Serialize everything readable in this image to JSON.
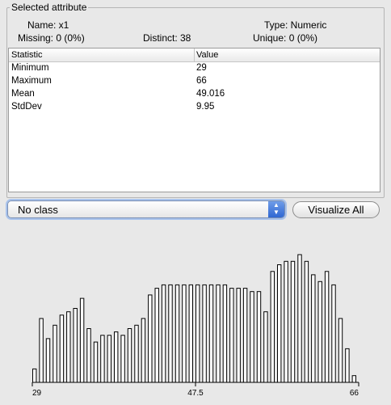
{
  "selected_attribute": {
    "title": "Selected attribute",
    "name": "Name: x1",
    "type": "Type: Numeric",
    "missing": "Missing: 0 (0%)",
    "distinct": "Distinct: 38",
    "unique": "Unique: 0 (0%)"
  },
  "stats_table": {
    "headers": [
      "Statistic",
      "Value"
    ],
    "rows": [
      {
        "statistic": "Minimum",
        "value": "29"
      },
      {
        "statistic": "Maximum",
        "value": "66"
      },
      {
        "statistic": "Mean",
        "value": "49.016"
      },
      {
        "statistic": "StdDev",
        "value": "9.95"
      }
    ]
  },
  "class_select": {
    "selected": "No class",
    "arrow_icon": "up-down-arrows-icon"
  },
  "visualize_button": {
    "label": "Visualize All"
  },
  "chart_data": {
    "type": "bar",
    "x_ticks": [
      "29",
      "47.5",
      "66"
    ],
    "xlim": [
      29,
      66
    ],
    "values": [
      4,
      19,
      13,
      17,
      20,
      21,
      22,
      25,
      16,
      12,
      14,
      14,
      15,
      14,
      16,
      17,
      19,
      26,
      28,
      29,
      29,
      29,
      29,
      29,
      29,
      29,
      29,
      29,
      29,
      28,
      28,
      28,
      27,
      27,
      21,
      33,
      35,
      36,
      36,
      38,
      36,
      32,
      30,
      33,
      29,
      19,
      10,
      2
    ],
    "ylim": [
      0,
      38
    ],
    "colors": {
      "bar_fill": "#ffffff",
      "bar_stroke": "#000000"
    }
  }
}
